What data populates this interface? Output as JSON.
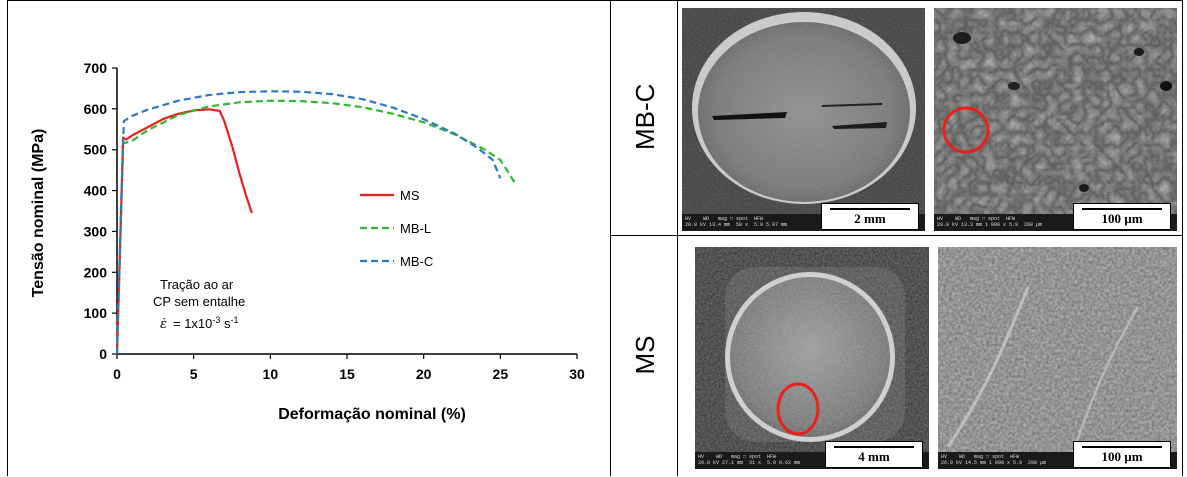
{
  "chart_data": {
    "type": "line",
    "xlabel": "Deformação nominal (%)",
    "ylabel": "Tensão nominal  (MPa)",
    "xlim": [
      0,
      30
    ],
    "ylim": [
      0,
      700
    ],
    "x_ticks": [
      "0",
      "5",
      "10",
      "15",
      "20",
      "25",
      "30"
    ],
    "y_ticks": [
      "0",
      "100",
      "200",
      "300",
      "400",
      "500",
      "600",
      "700"
    ],
    "grid": false,
    "legend_position": "right",
    "annotation": {
      "line1": "Tração ao ar",
      "line2": "CP sem entalhe",
      "line3_prefix": "ε̇",
      "line3_value": "= 1x10",
      "line3_exp": "-3",
      "line3_unit": " s",
      "line3_unit_exp": "-1"
    },
    "series": [
      {
        "name": "MS",
        "color": "#e8211c",
        "dash": "solid",
        "points": [
          [
            0,
            0
          ],
          [
            0.25,
            320
          ],
          [
            0.4,
            530
          ],
          [
            0.6,
            525
          ],
          [
            1,
            535
          ],
          [
            2,
            555
          ],
          [
            3,
            575
          ],
          [
            4,
            588
          ],
          [
            5,
            596
          ],
          [
            6,
            599
          ],
          [
            6.7,
            595
          ],
          [
            7,
            570
          ],
          [
            7.5,
            510
          ],
          [
            8,
            440
          ],
          [
            8.4,
            390
          ],
          [
            8.8,
            345
          ]
        ]
      },
      {
        "name": "MB-L",
        "color": "#2eb82e",
        "dash": "dashed",
        "points": [
          [
            0,
            0
          ],
          [
            0.25,
            320
          ],
          [
            0.4,
            515
          ],
          [
            1,
            522
          ],
          [
            2,
            548
          ],
          [
            4,
            585
          ],
          [
            6,
            606
          ],
          [
            8,
            616
          ],
          [
            10,
            620
          ],
          [
            12,
            619
          ],
          [
            14,
            614
          ],
          [
            16,
            604
          ],
          [
            18,
            588
          ],
          [
            20,
            567
          ],
          [
            22,
            538
          ],
          [
            24,
            500
          ],
          [
            25,
            475
          ],
          [
            25.6,
            440
          ],
          [
            26,
            415
          ]
        ]
      },
      {
        "name": "MB-C",
        "color": "#2f78c4",
        "dash": "dashed",
        "points": [
          [
            0,
            0
          ],
          [
            0.25,
            340
          ],
          [
            0.45,
            570
          ],
          [
            1,
            583
          ],
          [
            2,
            598
          ],
          [
            4,
            620
          ],
          [
            6,
            634
          ],
          [
            8,
            641
          ],
          [
            10,
            643
          ],
          [
            12,
            642
          ],
          [
            14,
            636
          ],
          [
            16,
            624
          ],
          [
            18,
            603
          ],
          [
            20,
            575
          ],
          [
            22,
            540
          ],
          [
            23.5,
            505
          ],
          [
            24.5,
            475
          ],
          [
            25,
            430
          ]
        ]
      }
    ]
  },
  "sem_panels": {
    "row1_label": "MB-C",
    "row2_label": "MS",
    "panels": [
      {
        "id": "mbc-macro",
        "scale": "2 mm",
        "databar": "HV    WD   mag □ spot  HFW\n20.0 kV 13.4 mm  50 x  5.9 5.97 mm"
      },
      {
        "id": "mbc-micro",
        "scale": "100 µm",
        "databar": "HV    WD   mag □ spot  HFW\n20.0 kV 13.3 mm 1 000 x 5.9  298 µm"
      },
      {
        "id": "ms-macro",
        "scale": "4 mm",
        "databar": "HV    WD   mag □ spot  HFW\n20.0 kV 27.1 mm  31 x  5.9 9.62 mm"
      },
      {
        "id": "ms-micro",
        "scale": "100 µm",
        "databar": "HV    WD   mag □ spot  HFW\n20.0 kV 14.5 mm 1 000 x 5.9  298 µm"
      }
    ]
  }
}
